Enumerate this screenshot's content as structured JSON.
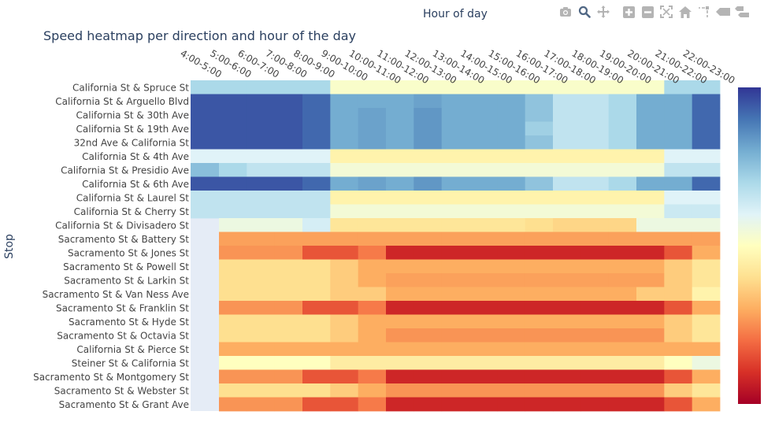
{
  "chart_data": {
    "type": "heatmap",
    "title": "Speed heatmap per direction and hour of the day",
    "xlabel": "Hour of day",
    "ylabel": "Stop",
    "colorscale": "RdYlBu",
    "zrange": [
      0,
      10
    ],
    "x": [
      "4:00-5:00",
      "5:00-6:00",
      "6:00-7:00",
      "7:00-8:00",
      "8:00-9:00",
      "9:00-10:00",
      "10:00-11:00",
      "11:00-12:00",
      "12:00-13:00",
      "13:00-14:00",
      "14:00-15:00",
      "15:00-16:00",
      "16:00-17:00",
      "17:00-18:00",
      "18:00-19:00",
      "19:00-20:00",
      "20:00-21:00",
      "21:00-22:00",
      "22:00-23:00"
    ],
    "y_labels": [
      "California St & Spruce St",
      "California St & Arguello Blvd",
      "California St & 30th Ave",
      "California St & 19th Ave",
      "32nd Ave & California St",
      "California St & 4th Ave",
      "California St & Presidio Ave",
      "California St & 6th Ave",
      "California St & Laurel St",
      "California St & Cherry St",
      "California St & Divisadero St",
      "Sacramento St & Battery St",
      "Sacramento St & Jones St",
      "Sacramento St & Powell St",
      "Sacramento St & Larkin St",
      "Sacramento St & Van Ness Ave",
      "Sacramento St & Franklin St",
      "Sacramento St & Hyde St",
      "Sacramento St & Octavia St",
      "California St & Pierce St",
      "Steiner St & California St",
      "Sacramento St & Montgomery St",
      "Sacramento St & Webster St",
      "Sacramento St & Grant Ave"
    ],
    "z": [
      [
        7.0,
        7.0,
        7.0,
        7.0,
        7.0,
        5.2,
        5.2,
        5.2,
        5.2,
        5.2,
        5.2,
        5.2,
        5.2,
        5.2,
        5.2,
        5.2,
        5.2,
        7.0,
        7.0
      ],
      [
        9.5,
        9.5,
        9.5,
        9.5,
        9.2,
        8.0,
        8.0,
        8.0,
        8.2,
        8.0,
        8.0,
        8.0,
        7.5,
        6.6,
        6.6,
        7.0,
        8.0,
        8.0,
        9.2
      ],
      [
        9.5,
        9.5,
        9.5,
        9.5,
        9.2,
        8.0,
        8.2,
        8.0,
        8.4,
        8.0,
        8.0,
        8.0,
        7.5,
        6.6,
        6.6,
        7.0,
        8.0,
        8.0,
        9.2
      ],
      [
        9.5,
        9.5,
        9.5,
        9.5,
        9.2,
        8.0,
        8.2,
        8.0,
        8.4,
        8.0,
        8.0,
        8.0,
        7.2,
        6.6,
        6.6,
        7.0,
        8.0,
        8.0,
        9.2
      ],
      [
        9.5,
        9.5,
        9.5,
        9.5,
        9.2,
        8.0,
        8.2,
        8.0,
        8.4,
        8.0,
        8.0,
        8.0,
        7.5,
        6.6,
        6.6,
        7.0,
        8.0,
        8.0,
        9.2
      ],
      [
        6.0,
        6.0,
        6.0,
        6.0,
        6.0,
        4.6,
        4.6,
        4.6,
        4.6,
        4.6,
        4.6,
        4.6,
        4.6,
        4.6,
        4.6,
        4.6,
        4.6,
        6.0,
        6.0
      ],
      [
        7.6,
        7.0,
        6.6,
        6.6,
        6.6,
        5.4,
        5.4,
        5.4,
        5.4,
        5.4,
        5.4,
        5.4,
        5.4,
        5.4,
        5.4,
        5.4,
        5.4,
        6.6,
        6.6
      ],
      [
        9.5,
        9.5,
        9.5,
        9.5,
        9.2,
        8.0,
        8.2,
        8.0,
        8.4,
        8.0,
        8.0,
        8.0,
        7.5,
        6.6,
        6.6,
        7.0,
        8.0,
        8.0,
        9.2
      ],
      [
        6.6,
        6.6,
        6.6,
        6.6,
        6.6,
        4.6,
        4.6,
        4.6,
        4.6,
        4.6,
        4.6,
        4.6,
        4.6,
        4.6,
        4.6,
        4.6,
        4.6,
        6.0,
        6.0
      ],
      [
        6.6,
        6.6,
        6.6,
        6.6,
        6.6,
        5.4,
        5.4,
        5.4,
        5.4,
        5.4,
        5.4,
        5.4,
        5.4,
        5.4,
        5.4,
        5.4,
        5.4,
        6.4,
        6.4
      ],
      [
        null,
        5.6,
        5.6,
        5.6,
        6.2,
        4.2,
        4.2,
        4.2,
        4.2,
        4.2,
        4.2,
        4.2,
        4.0,
        3.8,
        3.8,
        3.8,
        5.6,
        5.6,
        5.6
      ],
      [
        null,
        2.8,
        2.8,
        2.8,
        2.8,
        2.8,
        2.8,
        2.8,
        2.8,
        2.8,
        2.8,
        2.8,
        2.8,
        2.8,
        2.8,
        2.8,
        2.8,
        2.8,
        2.8
      ],
      [
        null,
        2.6,
        2.6,
        2.6,
        1.6,
        1.6,
        2.2,
        0.8,
        0.8,
        0.8,
        0.8,
        0.8,
        0.8,
        0.8,
        0.8,
        0.8,
        0.8,
        1.6,
        3.0
      ],
      [
        null,
        4.0,
        4.0,
        4.0,
        4.0,
        3.6,
        3.0,
        3.0,
        3.0,
        3.0,
        3.0,
        3.0,
        3.0,
        3.0,
        3.0,
        3.0,
        3.0,
        3.6,
        4.2
      ],
      [
        null,
        4.0,
        4.0,
        4.0,
        4.0,
        3.6,
        3.0,
        2.8,
        2.8,
        2.8,
        2.8,
        2.8,
        2.8,
        2.8,
        2.8,
        2.8,
        2.8,
        3.6,
        4.2
      ],
      [
        null,
        4.0,
        4.0,
        4.0,
        4.0,
        3.6,
        3.6,
        3.0,
        3.0,
        3.0,
        3.0,
        3.0,
        3.0,
        3.0,
        3.0,
        3.0,
        3.6,
        3.6,
        4.6
      ],
      [
        null,
        2.6,
        2.6,
        2.6,
        1.6,
        1.6,
        2.2,
        0.8,
        0.8,
        0.8,
        0.8,
        0.8,
        0.8,
        0.8,
        0.8,
        0.8,
        0.8,
        1.6,
        3.0
      ],
      [
        null,
        4.0,
        4.0,
        4.0,
        4.0,
        3.6,
        3.0,
        3.0,
        3.0,
        3.0,
        3.0,
        3.0,
        3.0,
        3.0,
        3.0,
        3.0,
        3.0,
        3.6,
        4.2
      ],
      [
        null,
        4.0,
        4.0,
        4.0,
        4.0,
        3.6,
        3.0,
        2.6,
        2.6,
        2.6,
        2.6,
        2.6,
        2.6,
        2.6,
        2.6,
        2.6,
        2.6,
        3.6,
        4.2
      ],
      [
        null,
        3.0,
        3.0,
        3.0,
        3.0,
        3.0,
        3.0,
        3.0,
        3.0,
        3.0,
        3.0,
        3.0,
        3.0,
        3.0,
        3.0,
        3.0,
        3.0,
        3.0,
        3.0
      ],
      [
        null,
        5.0,
        5.0,
        5.0,
        5.0,
        4.4,
        4.4,
        4.4,
        4.4,
        4.4,
        4.4,
        4.4,
        4.4,
        4.4,
        4.4,
        4.4,
        4.4,
        5.0,
        5.6
      ],
      [
        null,
        2.6,
        2.6,
        2.6,
        1.6,
        1.6,
        2.2,
        0.8,
        0.8,
        0.8,
        0.8,
        0.8,
        0.8,
        0.8,
        0.8,
        0.8,
        0.8,
        1.6,
        3.0
      ],
      [
        null,
        4.0,
        4.0,
        4.0,
        4.0,
        3.6,
        3.0,
        2.6,
        2.6,
        2.6,
        2.6,
        2.6,
        2.6,
        2.6,
        2.6,
        2.6,
        2.6,
        3.6,
        4.2
      ],
      [
        null,
        2.6,
        2.6,
        2.6,
        1.6,
        1.6,
        2.2,
        0.8,
        0.8,
        0.8,
        0.8,
        0.8,
        0.8,
        0.8,
        0.8,
        0.8,
        0.8,
        1.6,
        3.0
      ]
    ]
  },
  "modebar": {
    "buttons": [
      {
        "name": "camera-icon",
        "label": "Download plot as a png"
      },
      {
        "name": "zoom-icon",
        "label": "Zoom"
      },
      {
        "name": "pan-icon",
        "label": "Pan"
      },
      {
        "name": "zoom-in-icon",
        "label": "Zoom in"
      },
      {
        "name": "zoom-out-icon",
        "label": "Zoom out"
      },
      {
        "name": "autoscale-icon",
        "label": "Autoscale"
      },
      {
        "name": "home-icon",
        "label": "Reset axes"
      },
      {
        "name": "spike-lines-icon",
        "label": "Toggle Spike Lines"
      },
      {
        "name": "hover-closest-icon",
        "label": "Show closest data on hover"
      },
      {
        "name": "hover-compare-icon",
        "label": "Compare data on hover"
      }
    ]
  },
  "colors": {
    "text": "#2a3f5f",
    "tick_text": "#444444",
    "modebar_icon": "#b4b4b4",
    "modebar_active": "#506784",
    "plot_bg": "#e5ecf6"
  }
}
